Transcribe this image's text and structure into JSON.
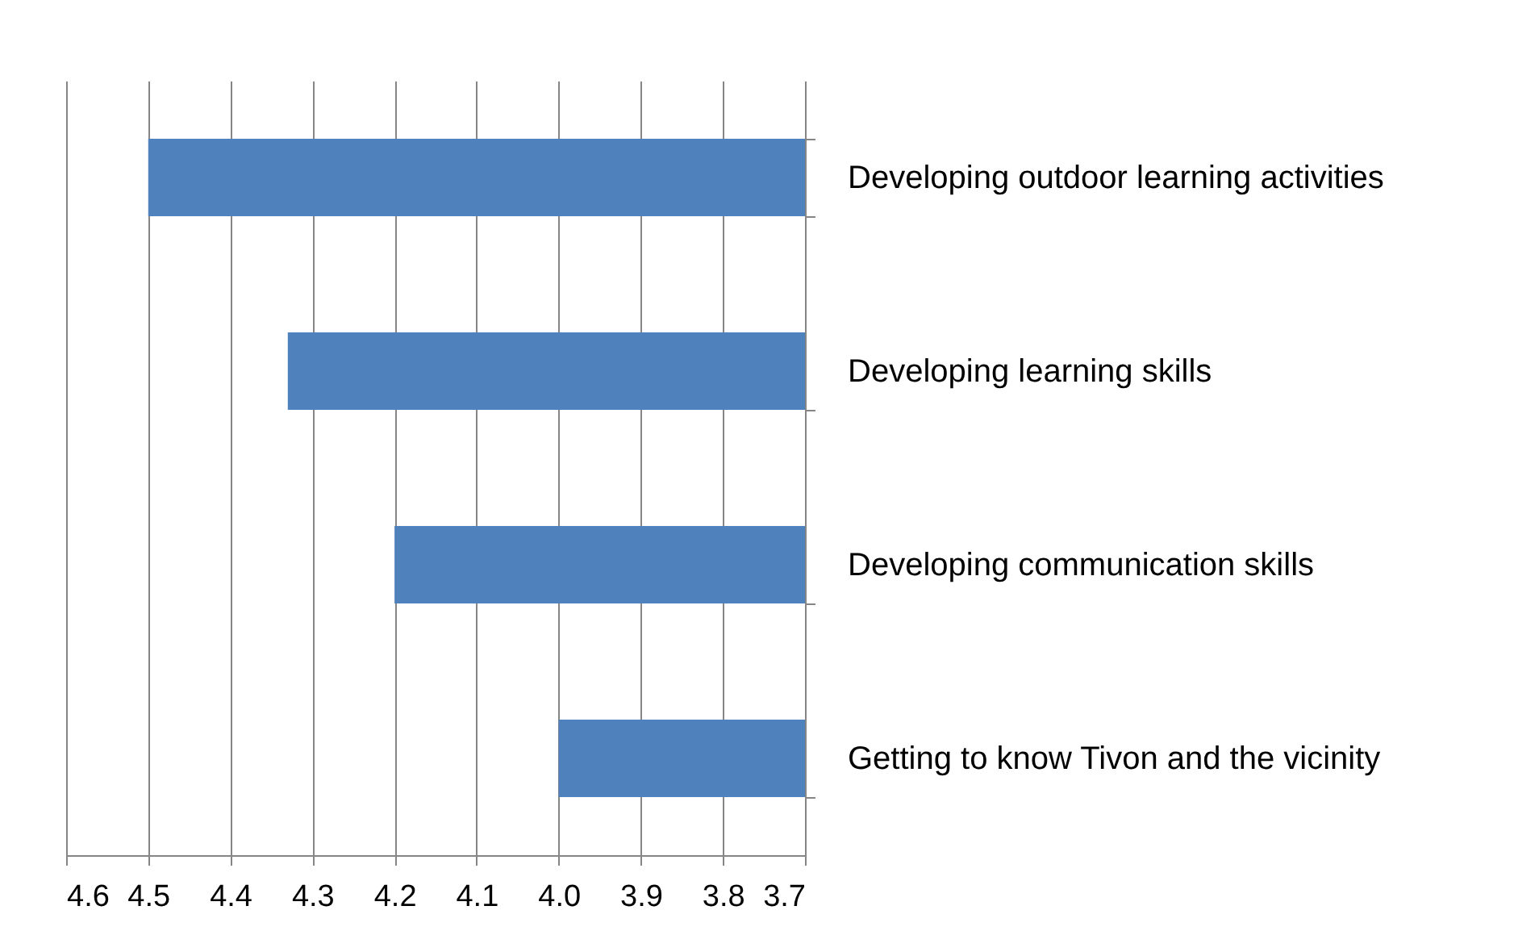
{
  "chart_data": {
    "type": "bar",
    "orientation": "horizontal",
    "categories": [
      "Developing outdoor learning activities",
      "Developing learning skills",
      "Developing communication skills",
      "Getting to know Tivon and the vicinity"
    ],
    "values": [
      4.5,
      4.33,
      4.2,
      4.0
    ],
    "color": "#4f81bd",
    "xlim": [
      4.6,
      3.7
    ],
    "xticks": [
      4.6,
      4.5,
      4.4,
      4.3,
      4.2,
      4.1,
      {
        "value": 4.0,
        "label": "4.0"
      },
      3.9,
      3.8,
      3.7
    ],
    "grid": "x"
  }
}
